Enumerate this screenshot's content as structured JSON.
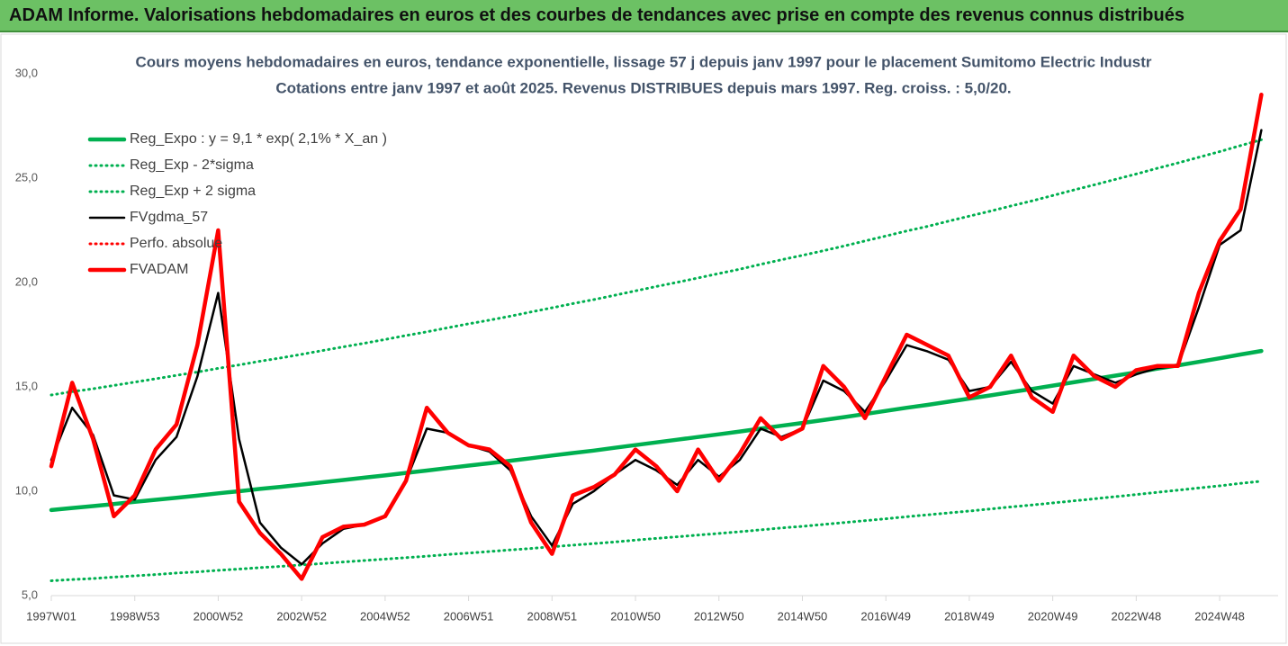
{
  "header": {
    "title": "ADAM Informe. Valorisations hebdomadaires en euros et des courbes de tendances avec prise en compte des revenus connus distribués"
  },
  "chart_data": {
    "type": "line",
    "title": "Cours moyens hebdomadaires en euros, tendance exponentielle, lissage 57 j depuis janv 1997 pour le placement Sumitomo Electric Industr",
    "subtitle": "Cotations entre janv 1997 et août 2025. Revenus DISTRIBUES depuis mars 1997. Reg. croiss. : 5,0/20.",
    "categories": [
      "1997W01",
      null,
      null,
      null,
      "1998W53",
      null,
      null,
      null,
      "2000W52",
      null,
      null,
      null,
      "2002W52",
      null,
      null,
      null,
      "2004W52",
      null,
      null,
      null,
      "2006W51",
      null,
      null,
      null,
      "2008W51",
      null,
      null,
      null,
      "2010W50",
      null,
      null,
      null,
      "2012W50",
      null,
      null,
      null,
      "2014W50",
      null,
      null,
      null,
      "2016W49",
      null,
      null,
      null,
      "2018W49",
      null,
      null,
      null,
      "2020W49",
      null,
      null,
      null,
      "2022W48",
      null,
      null,
      null,
      "2024W48",
      null,
      null
    ],
    "ylim": [
      5,
      30
    ],
    "yticks": [
      {
        "value": 5,
        "label": "5,0"
      },
      {
        "value": 10,
        "label": "10,0"
      },
      {
        "value": 15,
        "label": "15,0"
      },
      {
        "value": 20,
        "label": "20,0"
      },
      {
        "value": 25,
        "label": "25,0"
      },
      {
        "value": 30,
        "label": "30,0"
      }
    ],
    "grid": false,
    "legend": "upper left",
    "series": [
      {
        "name": "Reg_Expo : y = 9,1 * exp( 2,1% *  X_an )",
        "color": "#00b050",
        "style": "solid-thick",
        "values": [
          9.1,
          9.2,
          9.29,
          9.39,
          9.49,
          9.59,
          9.69,
          9.79,
          9.9,
          10.0,
          10.11,
          10.21,
          10.32,
          10.43,
          10.54,
          10.65,
          10.76,
          10.88,
          10.99,
          11.11,
          11.23,
          11.34,
          11.46,
          11.58,
          11.71,
          11.83,
          11.95,
          12.08,
          12.21,
          12.34,
          12.47,
          12.6,
          12.73,
          12.86,
          13.0,
          13.14,
          13.27,
          13.41,
          13.55,
          13.7,
          13.85,
          14.0,
          14.14,
          14.29,
          14.44,
          14.59,
          14.75,
          14.9,
          15.06,
          15.22,
          15.38,
          15.54,
          15.7,
          15.87,
          16.03,
          16.2,
          16.37,
          16.55,
          16.72
        ]
      },
      {
        "name": "Reg_Exp - 2*sigma",
        "color": "#00b050",
        "style": "dotted",
        "values": [
          5.71,
          5.77,
          5.82,
          5.89,
          5.95,
          6.01,
          6.08,
          6.14,
          6.21,
          6.27,
          6.34,
          6.4,
          6.47,
          6.54,
          6.61,
          6.68,
          6.75,
          6.82,
          6.89,
          6.97,
          7.04,
          7.11,
          7.19,
          7.26,
          7.34,
          7.42,
          7.49,
          7.57,
          7.66,
          7.74,
          7.82,
          7.9,
          7.98,
          8.06,
          8.15,
          8.24,
          8.32,
          8.41,
          8.5,
          8.59,
          8.68,
          8.78,
          8.87,
          8.96,
          9.05,
          9.15,
          9.25,
          9.34,
          9.44,
          9.54,
          9.64,
          9.74,
          9.84,
          9.95,
          10.05,
          10.16,
          10.26,
          10.38,
          10.48
        ]
      },
      {
        "name": "Reg_Exp + 2 sigma",
        "color": "#00b050",
        "style": "dotted",
        "values": [
          14.61,
          14.77,
          14.91,
          15.07,
          15.23,
          15.39,
          15.55,
          15.71,
          15.89,
          16.05,
          16.23,
          16.39,
          16.56,
          16.74,
          16.92,
          17.09,
          17.27,
          17.46,
          17.64,
          17.83,
          18.02,
          18.2,
          18.39,
          18.59,
          18.79,
          18.99,
          19.18,
          19.39,
          19.6,
          19.81,
          20.01,
          20.22,
          20.43,
          20.64,
          20.87,
          21.09,
          21.3,
          21.52,
          21.75,
          21.99,
          22.23,
          22.47,
          22.69,
          22.94,
          23.18,
          23.42,
          23.67,
          23.91,
          24.17,
          24.43,
          24.68,
          24.94,
          25.2,
          25.47,
          25.73,
          26.0,
          26.27,
          26.56,
          26.84
        ]
      },
      {
        "name": "FVgdma_57",
        "color": "#000000",
        "style": "solid",
        "values": [
          11.5,
          14.0,
          12.7,
          9.8,
          9.6,
          11.5,
          12.6,
          15.5,
          19.5,
          12.5,
          8.5,
          7.3,
          6.5,
          7.5,
          8.2,
          8.4,
          8.8,
          10.5,
          13.0,
          12.8,
          12.2,
          11.9,
          11.0,
          8.8,
          7.4,
          9.4,
          10.0,
          10.8,
          11.5,
          11.0,
          10.3,
          11.5,
          10.7,
          11.5,
          13.0,
          12.6,
          13.0,
          15.3,
          14.8,
          13.8,
          15.3,
          17.0,
          16.7,
          16.3,
          14.8,
          15.0,
          16.2,
          14.8,
          14.2,
          16.0,
          15.6,
          15.2,
          15.6,
          15.9,
          16.0,
          18.8,
          21.8,
          22.5,
          27.3
        ]
      },
      {
        "name": "Perfo. absolue",
        "color": "#ff0000",
        "style": "dotted",
        "values": [
          null,
          null,
          null,
          null,
          null,
          null,
          null,
          null,
          null,
          null,
          null,
          null,
          null,
          null,
          null,
          null,
          null,
          null,
          null,
          null,
          null,
          null,
          null,
          null,
          null,
          null,
          null,
          null,
          null,
          null,
          null,
          null,
          null,
          null,
          null,
          null,
          null,
          null,
          null,
          null,
          null,
          null,
          null,
          null,
          null,
          null,
          null,
          null,
          null,
          null,
          null,
          null,
          null,
          null,
          null,
          null,
          null,
          null,
          null
        ]
      },
      {
        "name": "FVADAM",
        "color": "#ff0000",
        "style": "solid-thick",
        "values": [
          11.2,
          15.2,
          12.5,
          8.8,
          9.8,
          12.0,
          13.2,
          17.0,
          22.5,
          9.5,
          8.0,
          7.0,
          5.8,
          7.8,
          8.3,
          8.4,
          8.8,
          10.5,
          14.0,
          12.8,
          12.2,
          12.0,
          11.2,
          8.5,
          7.0,
          9.8,
          10.2,
          10.8,
          12.0,
          11.2,
          10.0,
          12.0,
          10.5,
          11.8,
          13.5,
          12.5,
          13.0,
          16.0,
          15.0,
          13.5,
          15.5,
          17.5,
          17.0,
          16.5,
          14.5,
          15.0,
          16.5,
          14.5,
          13.8,
          16.5,
          15.5,
          15.0,
          15.8,
          16.0,
          16.0,
          19.5,
          22.0,
          23.5,
          29.0
        ]
      }
    ]
  }
}
